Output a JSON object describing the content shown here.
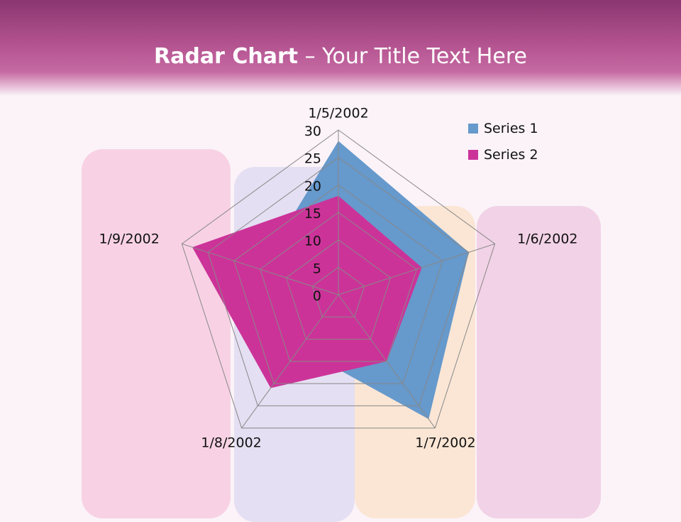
{
  "slide": {
    "title_bold": "Radar Chart",
    "title_rest": " – Your Title Text Here"
  },
  "colors": {
    "series1": "#6699cc",
    "series2": "#cc3399",
    "grid": "#888888"
  },
  "chart_data": {
    "type": "radar",
    "categories": [
      "1/5/2002",
      "1/6/2002",
      "1/7/2002",
      "1/8/2002",
      "1/9/2002"
    ],
    "series": [
      {
        "name": "Series 1",
        "values": [
          28,
          25,
          28,
          12,
          15
        ]
      },
      {
        "name": "Series 2",
        "values": [
          18,
          16,
          15,
          21,
          28
        ]
      }
    ],
    "rlim": [
      0,
      30
    ],
    "ticks": [
      "0",
      "5",
      "10",
      "15",
      "20",
      "25",
      "30"
    ],
    "legend": "top-right"
  }
}
